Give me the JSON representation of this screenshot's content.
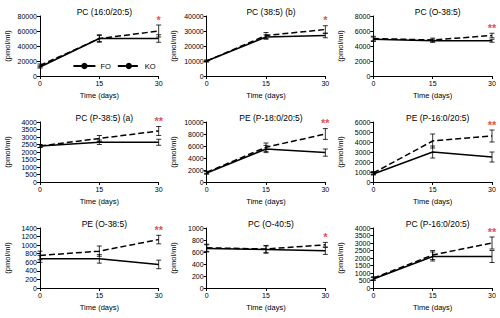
{
  "chart_data": [
    {
      "type": "line",
      "title": "PC (16:0/20:5)",
      "xlabel": "Time (days)",
      "ylabel": "(pmol/ml)",
      "x": [
        0,
        15,
        30
      ],
      "xlim": [
        0,
        30
      ],
      "xticks": [
        0,
        15,
        30
      ],
      "ylim": [
        0,
        80000
      ],
      "yticks": [
        0,
        20000,
        40000,
        60000,
        80000
      ],
      "grid": false,
      "legend": "lower right",
      "series": [
        {
          "name": "FO",
          "color": "#000000",
          "line_style": "solid",
          "marker": "none",
          "values": [
            12000,
            50000,
            50000
          ],
          "errors": [
            1500,
            4000,
            5000
          ]
        },
        {
          "name": "KO",
          "color": "#000000",
          "line_style": "dashed",
          "marker": "none",
          "values": [
            14000,
            50000,
            60000
          ],
          "errors": [
            2000,
            5000,
            8000
          ]
        }
      ],
      "annotations": [
        {
          "text": "*",
          "x": 30,
          "color": "#e02020"
        }
      ]
    },
    {
      "type": "line",
      "title": "PC (38:5) (b)",
      "xlabel": "Time (days)",
      "ylabel": "(pmol/ml)",
      "x": [
        0,
        15,
        30
      ],
      "xlim": [
        0,
        30
      ],
      "xticks": [
        0,
        15,
        30
      ],
      "ylim": [
        0,
        40000
      ],
      "yticks": [
        0,
        10000,
        20000,
        30000,
        40000
      ],
      "grid": false,
      "series": [
        {
          "name": "FO",
          "color": "#000000",
          "line_style": "solid",
          "marker": "none",
          "values": [
            10000,
            26000,
            27000
          ],
          "errors": [
            500,
            1500,
            1500
          ]
        },
        {
          "name": "KO",
          "color": "#000000",
          "line_style": "dashed",
          "marker": "none",
          "values": [
            10000,
            27000,
            31000
          ],
          "errors": [
            600,
            2000,
            2500
          ]
        }
      ],
      "annotations": [
        {
          "text": "*",
          "x": 30,
          "color": "#e02020"
        }
      ]
    },
    {
      "type": "line",
      "title": "PC (O-38:5)",
      "xlabel": "Time (days)",
      "ylabel": "(pmol/ml)",
      "x": [
        0,
        15,
        30
      ],
      "xlim": [
        0,
        30
      ],
      "xticks": [
        0,
        15,
        30
      ],
      "ylim": [
        0,
        8000
      ],
      "yticks": [
        0,
        2000,
        4000,
        6000,
        8000
      ],
      "grid": false,
      "series": [
        {
          "name": "FO",
          "color": "#000000",
          "line_style": "solid",
          "marker": "none",
          "values": [
            4900,
            4700,
            4700
          ],
          "errors": [
            300,
            200,
            200
          ]
        },
        {
          "name": "KO",
          "color": "#000000",
          "line_style": "dashed",
          "marker": "none",
          "values": [
            5000,
            4800,
            5400
          ],
          "errors": [
            300,
            250,
            300
          ]
        }
      ],
      "annotations": [
        {
          "text": "**",
          "x": 30,
          "color": "#e02020"
        }
      ]
    },
    {
      "type": "line",
      "title": "PC (P-38:5) (a)",
      "xlabel": "Time (days)",
      "ylabel": "(pmol/ml)",
      "x": [
        0,
        15,
        30
      ],
      "xlim": [
        0,
        30
      ],
      "xticks": [
        0,
        15,
        30
      ],
      "ylim": [
        0,
        4000
      ],
      "yticks": [
        0,
        500,
        1000,
        1500,
        2000,
        2500,
        3000,
        3500,
        4000
      ],
      "grid": false,
      "series": [
        {
          "name": "FO",
          "color": "#000000",
          "line_style": "solid",
          "marker": "none",
          "values": [
            2400,
            2650,
            2650
          ],
          "errors": [
            100,
            150,
            200
          ]
        },
        {
          "name": "KO",
          "color": "#000000",
          "line_style": "dashed",
          "marker": "none",
          "values": [
            2400,
            2900,
            3400
          ],
          "errors": [
            100,
            200,
            300
          ]
        }
      ],
      "annotations": [
        {
          "text": "**",
          "x": 30,
          "color": "#e02020"
        }
      ]
    },
    {
      "type": "line",
      "title": "PE (P-18:0/20:5)",
      "xlabel": "Time (days)",
      "ylabel": "(pmol/ml)",
      "x": [
        0,
        15,
        30
      ],
      "xlim": [
        0,
        30
      ],
      "xticks": [
        0,
        15,
        30
      ],
      "ylim": [
        0,
        10000
      ],
      "yticks": [
        0,
        2000,
        4000,
        6000,
        8000,
        10000
      ],
      "grid": false,
      "series": [
        {
          "name": "FO",
          "color": "#000000",
          "line_style": "solid",
          "marker": "none",
          "values": [
            1500,
            5500,
            4900
          ],
          "errors": [
            200,
            600,
            600
          ]
        },
        {
          "name": "KO",
          "color": "#000000",
          "line_style": "dashed",
          "marker": "none",
          "values": [
            1600,
            5800,
            8000
          ],
          "errors": [
            200,
            700,
            900
          ]
        }
      ],
      "annotations": [
        {
          "text": "**",
          "x": 30,
          "color": "#e02020"
        }
      ]
    },
    {
      "type": "line",
      "title": "PE (P-16:0/20:5)",
      "xlabel": "Time (days)",
      "ylabel": "(pmol/ml)",
      "x": [
        0,
        15,
        30
      ],
      "xlim": [
        0,
        30
      ],
      "xticks": [
        0,
        15,
        30
      ],
      "ylim": [
        0,
        6000
      ],
      "yticks": [
        0,
        1000,
        2000,
        3000,
        4000,
        5000,
        6000
      ],
      "grid": false,
      "series": [
        {
          "name": "FO",
          "color": "#000000",
          "line_style": "solid",
          "marker": "none",
          "values": [
            800,
            3000,
            2500
          ],
          "errors": [
            100,
            600,
            500
          ]
        },
        {
          "name": "KO",
          "color": "#000000",
          "line_style": "dashed",
          "marker": "none",
          "values": [
            900,
            4100,
            4600
          ],
          "errors": [
            150,
            700,
            600
          ]
        }
      ],
      "annotations": [
        {
          "text": "**",
          "x": 30,
          "color": "#e02020"
        }
      ]
    },
    {
      "type": "line",
      "title": "PE (O-38:5)",
      "xlabel": "Time (days)",
      "ylabel": "(pmol/ml)",
      "x": [
        0,
        15,
        30
      ],
      "xlim": [
        0,
        30
      ],
      "xticks": [
        0,
        15,
        30
      ],
      "ylim": [
        0,
        1400
      ],
      "yticks": [
        0,
        200,
        400,
        600,
        800,
        1000,
        1200,
        1400
      ],
      "grid": false,
      "series": [
        {
          "name": "FO",
          "color": "#000000",
          "line_style": "solid",
          "marker": "none",
          "values": [
            680,
            680,
            550
          ],
          "errors": [
            80,
            100,
            100
          ]
        },
        {
          "name": "KO",
          "color": "#000000",
          "line_style": "dashed",
          "marker": "none",
          "values": [
            760,
            860,
            1130
          ],
          "errors": [
            100,
            120,
            100
          ]
        }
      ],
      "annotations": [
        {
          "text": "**",
          "x": 30,
          "color": "#e02020"
        }
      ]
    },
    {
      "type": "line",
      "title": "PC (O-40:5)",
      "xlabel": "Time (days)",
      "ylabel": "(pmol/ml)",
      "x": [
        0,
        15,
        30
      ],
      "xlim": [
        0,
        30
      ],
      "xticks": [
        0,
        15,
        30
      ],
      "ylim": [
        0,
        1000
      ],
      "yticks": [
        0,
        200,
        400,
        600,
        800,
        1000
      ],
      "grid": false,
      "series": [
        {
          "name": "FO",
          "color": "#000000",
          "line_style": "solid",
          "marker": "none",
          "values": [
            660,
            640,
            620
          ],
          "errors": [
            60,
            60,
            60
          ]
        },
        {
          "name": "KO",
          "color": "#000000",
          "line_style": "dashed",
          "marker": "none",
          "values": [
            670,
            650,
            720
          ],
          "errors": [
            60,
            60,
            40
          ]
        }
      ],
      "annotations": [
        {
          "text": "*",
          "x": 30,
          "color": "#e02020"
        }
      ]
    },
    {
      "type": "line",
      "title": "PC (P-16:0/20:5)",
      "xlabel": "Time (days)",
      "ylabel": "(pmol/ml)",
      "x": [
        0,
        15,
        30
      ],
      "xlim": [
        0,
        30
      ],
      "xticks": [
        0,
        15,
        30
      ],
      "ylim": [
        0,
        4000
      ],
      "yticks": [
        0,
        500,
        1000,
        1500,
        2000,
        2500,
        3000,
        3500,
        4000
      ],
      "grid": false,
      "series": [
        {
          "name": "FO",
          "color": "#000000",
          "line_style": "solid",
          "marker": "none",
          "values": [
            600,
            2100,
            2100
          ],
          "errors": [
            100,
            300,
            400
          ]
        },
        {
          "name": "KO",
          "color": "#000000",
          "line_style": "dashed",
          "marker": "none",
          "values": [
            650,
            2200,
            3000
          ],
          "errors": [
            100,
            300,
            400
          ]
        }
      ],
      "annotations": [
        {
          "text": "**",
          "x": 30,
          "color": "#e02020"
        }
      ]
    }
  ]
}
